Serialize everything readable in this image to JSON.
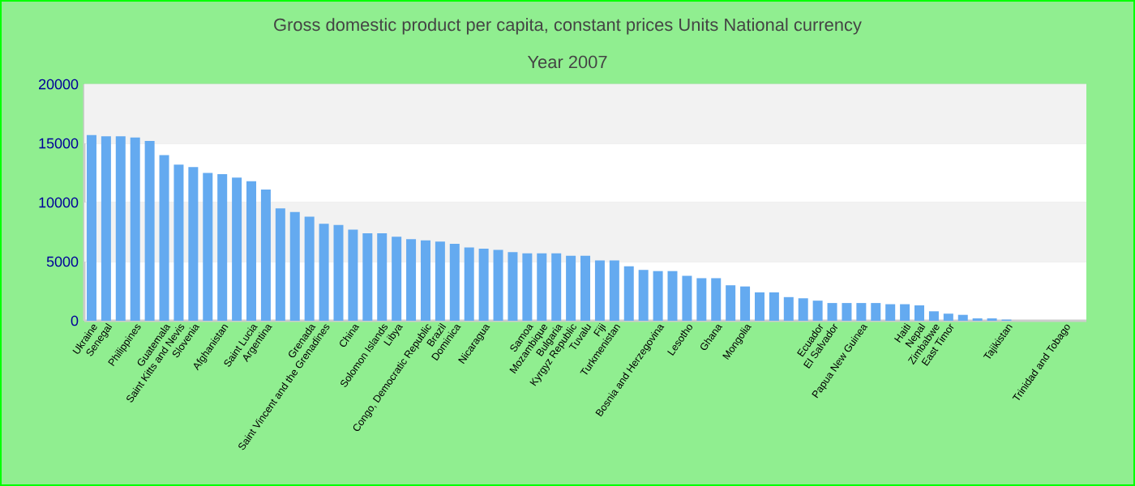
{
  "chart_data": {
    "type": "bar",
    "title": "Gross domestic product per capita, constant prices Units National currency",
    "subtitle": "Year 2007",
    "categories": [
      "Ukraine",
      "Senegal",
      null,
      "Philippines",
      null,
      "Guatemala",
      "Saint Kitts and Nevis",
      "Slovenia",
      null,
      "Afghanistan",
      null,
      "Saint Lucia",
      "Argentina",
      null,
      null,
      "Grenada",
      "Saint Vincent and the Grenadines",
      null,
      "China",
      null,
      "Solomon Islands",
      "Libya",
      null,
      "Congo, Democratic Republic",
      "Brazil",
      "Dominica",
      null,
      "Nicaragua",
      null,
      null,
      "Samoa",
      "Mozambique",
      "Bulgaria",
      "Kyrgyz Republic",
      "Tuvalu",
      "Fiji",
      "Turkmenistan",
      null,
      null,
      "Bosnia and Herzegovina",
      null,
      "Lesotho",
      null,
      "Ghana",
      null,
      "Mongolia",
      null,
      null,
      null,
      null,
      "Ecuador",
      "El Salvador",
      null,
      "Papua New Guinea",
      null,
      null,
      "Haiti",
      "Nepal",
      "Zimbabwe",
      "East Timor",
      null,
      null,
      null,
      "Tajikistan",
      null,
      null,
      null,
      "Trinidad and Tobago",
      null
    ],
    "values": [
      15700,
      15600,
      15600,
      15500,
      15200,
      14000,
      13200,
      13000,
      12500,
      12400,
      12100,
      11800,
      11100,
      9500,
      9200,
      8800,
      8200,
      8100,
      7700,
      7400,
      7400,
      7100,
      6900,
      6800,
      6700,
      6500,
      6200,
      6100,
      6000,
      5800,
      5700,
      5700,
      5700,
      5500,
      5500,
      5100,
      5100,
      4600,
      4300,
      4200,
      4200,
      3800,
      3600,
      3600,
      3000,
      2900,
      2400,
      2400,
      2000,
      1900,
      1700,
      1500,
      1500,
      1500,
      1500,
      1400,
      1400,
      1300,
      800,
      600,
      500,
      200,
      200,
      100,
      null,
      null,
      null,
      null,
      null
    ],
    "color": "#64aaf0",
    "ylim": [
      0,
      20000
    ],
    "yticks": [
      0,
      5000,
      10000,
      15000,
      20000
    ],
    "grid": "y"
  }
}
